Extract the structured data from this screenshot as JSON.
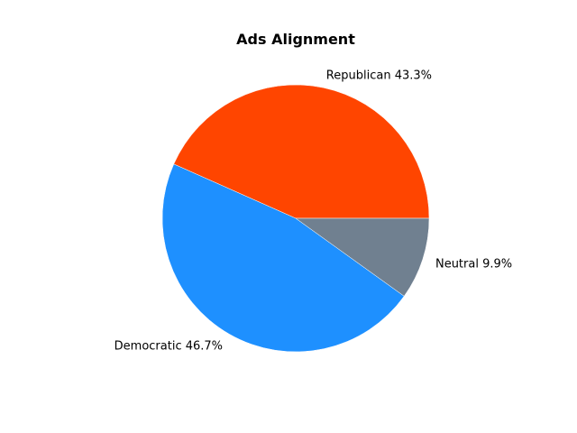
{
  "chart_data": {
    "type": "pie",
    "title": "Ads Alignment",
    "slices": [
      {
        "label": "Republican",
        "value": 43.3,
        "color": "#ff4500"
      },
      {
        "label": "Democratic",
        "value": 46.7,
        "color": "#1e90ff"
      },
      {
        "label": "Neutral",
        "value": 9.9,
        "color": "#708090"
      }
    ],
    "legend": "none"
  }
}
